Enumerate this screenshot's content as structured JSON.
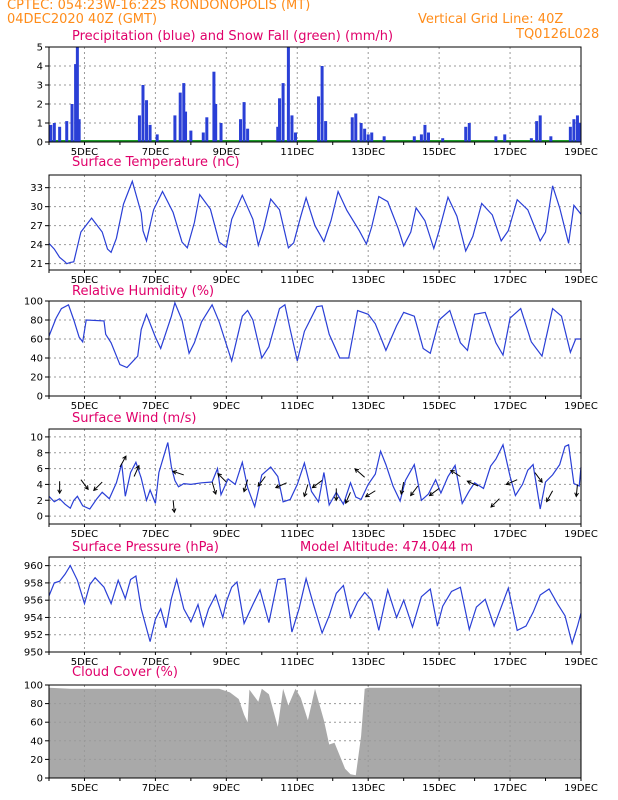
{
  "header": {
    "line1_left": "CPTEC:  054:23W-16:22S  RONDONOPOLIS (MT)",
    "line2_left": "04DEC2020 40Z (GMT)",
    "line2_right": "Vertical Grid Line: 40Z",
    "code": "TQ0126L028"
  },
  "x_ticks": [
    "5DEC",
    "7DEC",
    "9DEC",
    "11DEC",
    "13DEC",
    "15DEC",
    "17DEC",
    "19DEC"
  ],
  "colors": {
    "header": "#ff8c1a",
    "title": "#e0006a",
    "line": "#2a3fd6",
    "snow": "#1f9d2a",
    "cloud": "#a9a9a9",
    "grid": "#9a9a9a"
  },
  "chart_data": [
    {
      "id": "precip",
      "type": "bar",
      "title": "Precipitation (blue) and Snow Fall (green) (mm/h)",
      "ylim": [
        0,
        5
      ],
      "yticks": [
        0,
        1,
        2,
        3,
        4,
        5
      ],
      "x_range_days": [
        4.0,
        19.0
      ],
      "series": [
        {
          "name": "Precipitation",
          "color": "#2a3fd6",
          "bars": [
            [
              4.05,
              0.9
            ],
            [
              4.15,
              1.0
            ],
            [
              4.3,
              0.8
            ],
            [
              4.5,
              1.1
            ],
            [
              4.65,
              2.0
            ],
            [
              4.75,
              4.1
            ],
            [
              4.8,
              5.0
            ],
            [
              4.85,
              1.2
            ],
            [
              6.55,
              1.4
            ],
            [
              6.65,
              3.0
            ],
            [
              6.75,
              2.2
            ],
            [
              6.85,
              0.9
            ],
            [
              7.05,
              0.4
            ],
            [
              7.55,
              1.4
            ],
            [
              7.7,
              2.6
            ],
            [
              7.8,
              3.1
            ],
            [
              7.85,
              1.6
            ],
            [
              8.0,
              0.6
            ],
            [
              8.35,
              0.5
            ],
            [
              8.45,
              1.3
            ],
            [
              8.65,
              3.7
            ],
            [
              8.7,
              2.0
            ],
            [
              8.85,
              1.0
            ],
            [
              9.4,
              1.2
            ],
            [
              9.5,
              2.1
            ],
            [
              9.6,
              0.7
            ],
            [
              10.45,
              0.8
            ],
            [
              10.5,
              2.3
            ],
            [
              10.6,
              3.1
            ],
            [
              10.75,
              5.0
            ],
            [
              10.85,
              1.4
            ],
            [
              10.95,
              0.5
            ],
            [
              11.6,
              2.4
            ],
            [
              11.7,
              4.0
            ],
            [
              11.8,
              1.1
            ],
            [
              12.55,
              1.3
            ],
            [
              12.65,
              1.5
            ],
            [
              12.8,
              1.0
            ],
            [
              12.9,
              0.7
            ],
            [
              13.0,
              0.4
            ],
            [
              13.1,
              0.5
            ],
            [
              13.45,
              0.3
            ],
            [
              14.3,
              0.3
            ],
            [
              14.5,
              0.4
            ],
            [
              14.6,
              0.9
            ],
            [
              14.7,
              0.5
            ],
            [
              15.1,
              0.2
            ],
            [
              15.75,
              0.8
            ],
            [
              15.85,
              1.0
            ],
            [
              16.6,
              0.3
            ],
            [
              16.85,
              0.4
            ],
            [
              17.6,
              0.2
            ],
            [
              17.75,
              1.1
            ],
            [
              17.85,
              1.4
            ],
            [
              18.15,
              0.3
            ],
            [
              18.7,
              0.8
            ],
            [
              18.8,
              1.2
            ],
            [
              18.9,
              1.4
            ],
            [
              18.95,
              1.0
            ]
          ]
        },
        {
          "name": "Snow Fall",
          "color": "#1f9d2a",
          "values": "0 throughout"
        }
      ]
    },
    {
      "id": "temp",
      "type": "line",
      "title": "Surface Temperature (nC)",
      "ylim": [
        20,
        35
      ],
      "yticks": [
        21,
        24,
        27,
        30,
        33
      ],
      "x": [
        4.0,
        4.15,
        4.3,
        4.45,
        4.5,
        4.6,
        4.7,
        4.9,
        5.2,
        5.5,
        5.65,
        5.75,
        5.9,
        6.1,
        6.35,
        6.6,
        6.65,
        6.75,
        6.95,
        7.2,
        7.5,
        7.75,
        7.9,
        8.1,
        8.25,
        8.55,
        8.8,
        9.0,
        9.15,
        9.45,
        9.75,
        9.9,
        10.05,
        10.25,
        10.5,
        10.75,
        10.9,
        11.1,
        11.25,
        11.5,
        11.75,
        11.95,
        12.15,
        12.4,
        12.75,
        12.95,
        13.1,
        13.3,
        13.55,
        13.85,
        14.0,
        14.2,
        14.35,
        14.6,
        14.85,
        15.0,
        15.25,
        15.5,
        15.75,
        15.95,
        16.2,
        16.5,
        16.75,
        16.95,
        17.2,
        17.5,
        17.85,
        18.0,
        18.2,
        18.4,
        18.65,
        18.8,
        19.0
      ],
      "y": [
        24.2,
        23.3,
        22.0,
        21.3,
        21.0,
        21.2,
        21.3,
        26.0,
        28.2,
        26.0,
        23.3,
        22.8,
        25.0,
        30.4,
        34.0,
        29.0,
        26.2,
        24.6,
        29.5,
        32.4,
        29.1,
        24.4,
        23.5,
        27.5,
        31.9,
        29.6,
        24.4,
        23.6,
        28.0,
        31.8,
        28.0,
        23.9,
        26.5,
        31.2,
        29.5,
        23.5,
        24.3,
        28.5,
        31.4,
        27.0,
        24.5,
        27.8,
        32.4,
        29.4,
        26.2,
        24.1,
        26.8,
        31.6,
        30.8,
        26.5,
        23.8,
        26.0,
        29.8,
        27.8,
        23.4,
        26.2,
        31.5,
        28.5,
        23.0,
        25.3,
        30.5,
        28.7,
        24.6,
        26.2,
        31.1,
        29.5,
        24.6,
        26.0,
        33.3,
        29.8,
        24.2,
        30.2,
        28.8
      ]
    },
    {
      "id": "rh",
      "type": "line",
      "title": "Relative Humidity (%)",
      "ylim": [
        0,
        100
      ],
      "yticks": [
        0,
        20,
        40,
        60,
        80,
        100
      ],
      "x": [
        4.0,
        4.2,
        4.35,
        4.55,
        4.7,
        4.85,
        4.95,
        5.05,
        5.55,
        5.6,
        5.75,
        6.0,
        6.2,
        6.5,
        6.6,
        6.75,
        7.0,
        7.15,
        7.45,
        7.55,
        7.75,
        7.95,
        8.1,
        8.3,
        8.6,
        8.8,
        8.95,
        9.15,
        9.45,
        9.6,
        9.75,
        10.0,
        10.2,
        10.5,
        10.65,
        10.8,
        11.0,
        11.2,
        11.55,
        11.7,
        11.9,
        12.2,
        12.45,
        12.7,
        13.0,
        13.2,
        13.5,
        13.8,
        14.0,
        14.3,
        14.55,
        14.75,
        15.0,
        15.3,
        15.6,
        15.8,
        16.0,
        16.3,
        16.6,
        16.8,
        17.0,
        17.3,
        17.6,
        17.9,
        18.2,
        18.45,
        18.7,
        18.85,
        19.0
      ],
      "y": [
        63,
        82,
        92,
        96,
        80,
        62,
        57,
        80,
        79,
        65,
        56,
        33,
        30,
        42,
        70,
        86,
        62,
        50,
        84,
        98,
        80,
        45,
        56,
        78,
        96,
        78,
        60,
        37,
        84,
        90,
        80,
        40,
        52,
        92,
        96,
        70,
        37,
        68,
        94,
        95,
        65,
        40,
        40,
        90,
        86,
        76,
        48,
        74,
        88,
        84,
        50,
        45,
        80,
        90,
        56,
        48,
        86,
        88,
        56,
        43,
        82,
        92,
        57,
        42,
        92,
        84,
        46,
        60,
        60
      ]
    },
    {
      "id": "wind",
      "type": "line",
      "title": "Surface Wind (m/s)",
      "ylim": [
        -1,
        11
      ],
      "yticks": [
        0,
        2,
        4,
        6,
        8,
        10
      ],
      "x": [
        4.0,
        4.15,
        4.3,
        4.45,
        4.6,
        4.7,
        4.8,
        4.95,
        5.15,
        5.35,
        5.5,
        5.7,
        5.9,
        6.05,
        6.15,
        6.3,
        6.45,
        6.6,
        6.75,
        6.85,
        7.0,
        7.1,
        7.25,
        7.35,
        7.45,
        7.55,
        7.65,
        7.8,
        8.0,
        8.3,
        8.6,
        8.75,
        8.85,
        9.05,
        9.25,
        9.45,
        9.6,
        9.8,
        10.0,
        10.25,
        10.45,
        10.6,
        10.8,
        11.0,
        11.2,
        11.4,
        11.6,
        11.75,
        11.9,
        12.1,
        12.3,
        12.5,
        12.65,
        12.8,
        13.0,
        13.2,
        13.35,
        13.5,
        13.7,
        13.9,
        14.05,
        14.3,
        14.5,
        14.7,
        14.9,
        15.05,
        15.25,
        15.45,
        15.65,
        15.85,
        16.0,
        16.25,
        16.45,
        16.6,
        16.8,
        17.0,
        17.15,
        17.35,
        17.5,
        17.65,
        17.85,
        18.0,
        18.2,
        18.4,
        18.55,
        18.65,
        18.8,
        18.95,
        19.0
      ],
      "y": [
        2.5,
        1.8,
        2.2,
        1.5,
        1.0,
        2.0,
        2.5,
        1.3,
        0.9,
        2.2,
        3.0,
        2.2,
        4.2,
        6.6,
        2.5,
        5.5,
        6.8,
        4.8,
        2.0,
        3.3,
        1.6,
        5.5,
        7.8,
        9.3,
        6.2,
        4.5,
        3.7,
        4.1,
        4.0,
        4.2,
        4.3,
        6.0,
        2.7,
        4.7,
        4.0,
        6.8,
        3.6,
        1.2,
        5.2,
        6.2,
        5.0,
        1.8,
        2.1,
        4.0,
        6.7,
        3.1,
        1.8,
        5.5,
        1.4,
        3.0,
        1.5,
        4.2,
        2.4,
        2.1,
        4.0,
        5.3,
        8.2,
        6.5,
        3.8,
        1.9,
        4.5,
        6.5,
        2.0,
        2.8,
        4.6,
        2.9,
        5.0,
        6.4,
        1.6,
        3.2,
        4.2,
        3.5,
        6.3,
        7.2,
        9.0,
        5.0,
        2.6,
        4.0,
        5.8,
        6.5,
        0.9,
        4.3,
        5.2,
        6.5,
        8.8,
        9.0,
        4.1,
        3.8,
        6.2
      ]
    },
    {
      "id": "pressure",
      "type": "line",
      "title": "Surface Pressure (hPa)",
      "annotation": "Model Altitude: 474.044 m",
      "ylim": [
        950,
        961
      ],
      "yticks": [
        950,
        952,
        954,
        956,
        958,
        960
      ],
      "x": [
        4.0,
        4.15,
        4.3,
        4.45,
        4.6,
        4.8,
        5.0,
        5.15,
        5.3,
        5.55,
        5.75,
        5.95,
        6.15,
        6.3,
        6.45,
        6.6,
        6.85,
        7.0,
        7.15,
        7.3,
        7.45,
        7.6,
        7.8,
        8.0,
        8.2,
        8.35,
        8.5,
        8.7,
        8.9,
        9.0,
        9.15,
        9.3,
        9.5,
        9.75,
        9.95,
        10.2,
        10.45,
        10.65,
        10.85,
        11.05,
        11.25,
        11.45,
        11.7,
        11.9,
        12.1,
        12.3,
        12.5,
        12.7,
        12.9,
        13.1,
        13.3,
        13.55,
        13.8,
        14.0,
        14.25,
        14.5,
        14.75,
        14.95,
        15.1,
        15.35,
        15.6,
        15.85,
        16.05,
        16.3,
        16.55,
        16.75,
        16.95,
        17.2,
        17.45,
        17.65,
        17.85,
        18.1,
        18.35,
        18.55,
        18.75,
        18.9,
        19.0
      ],
      "y": [
        956.5,
        958.0,
        958.2,
        959.0,
        960.0,
        958.3,
        955.6,
        957.8,
        958.6,
        957.5,
        955.6,
        958.3,
        956.2,
        958.4,
        958.8,
        955.0,
        951.2,
        953.8,
        955.0,
        952.8,
        956.2,
        958.4,
        955.0,
        953.5,
        955.5,
        953.0,
        955.0,
        956.6,
        954.0,
        955.8,
        957.5,
        958.1,
        953.3,
        955.5,
        957.2,
        953.4,
        958.4,
        958.5,
        952.3,
        955.0,
        958.5,
        955.6,
        952.2,
        954.2,
        956.8,
        957.7,
        954.0,
        955.8,
        956.9,
        956.0,
        952.5,
        957.2,
        954.0,
        956.0,
        952.9,
        956.4,
        957.3,
        953.0,
        955.3,
        957.0,
        957.5,
        952.6,
        955.2,
        956.1,
        953.0,
        955.2,
        957.4,
        952.5,
        953.0,
        954.6,
        956.6,
        957.3,
        955.5,
        954.2,
        951.0,
        953.0,
        954.5
      ]
    },
    {
      "id": "cloud",
      "type": "area",
      "title": "Cloud Cover (%)",
      "ylim": [
        0,
        100
      ],
      "yticks": [
        0,
        20,
        40,
        60,
        80,
        100
      ],
      "color": "#a9a9a9",
      "x": [
        4.0,
        4.6,
        5.2,
        6.0,
        6.8,
        7.5,
        8.2,
        8.8,
        9.1,
        9.35,
        9.5,
        9.6,
        9.65,
        9.9,
        10.0,
        10.2,
        10.45,
        10.6,
        10.75,
        10.95,
        11.1,
        11.3,
        11.5,
        11.75,
        11.9,
        12.05,
        12.2,
        12.35,
        12.5,
        12.65,
        12.8,
        12.9,
        13.0,
        13.5,
        14.5,
        15.5,
        16.5,
        17.5,
        18.5,
        19.0
      ],
      "y": [
        97,
        96,
        96,
        96,
        96,
        96,
        96,
        96,
        92,
        85,
        68,
        60,
        95,
        82,
        96,
        90,
        55,
        96,
        78,
        96,
        86,
        62,
        96,
        62,
        36,
        38,
        24,
        10,
        4,
        3,
        45,
        96,
        97,
        97,
        97,
        97,
        97,
        97,
        97,
        97
      ]
    }
  ]
}
